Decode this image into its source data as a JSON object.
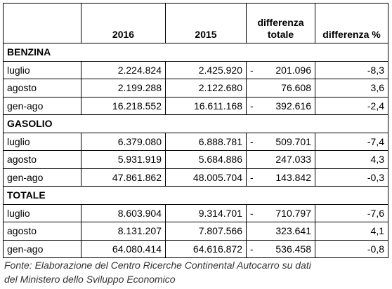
{
  "table": {
    "header": [
      "2016",
      "2015",
      "differenza totale",
      "differenza %"
    ],
    "sections": [
      {
        "name": "BENZINA",
        "rows": [
          {
            "label": "luglio",
            "values": [
              "2.224.824",
              "2.425.920"
            ],
            "sign": "-",
            "diff": "201.096",
            "pct": "-8,3"
          },
          {
            "label": "agosto",
            "values": [
              "2.199.288",
              "2.122.680"
            ],
            "diff": "76.608",
            "pct": "3,6"
          },
          {
            "label": "gen-ago",
            "values": [
              "16.218.552",
              "16.611.168"
            ],
            "sign": "-",
            "diff": "392.616",
            "pct": "-2,4"
          }
        ]
      },
      {
        "name": "GASOLIO",
        "rows": [
          {
            "label": "luglio",
            "values": [
              "6.379.080",
              "6.888.781"
            ],
            "sign": "-",
            "diff": "509.701",
            "pct": "-7,4"
          },
          {
            "label": "agosto",
            "values": [
              "5.931.919",
              "5.684.886"
            ],
            "diff": "247.033",
            "pct": "4,3"
          },
          {
            "label": "gen-ago",
            "values": [
              "47.861.862",
              "48.005.704"
            ],
            "sign": "-",
            "diff": "143.842",
            "pct": "-0,3"
          }
        ]
      },
      {
        "name": "TOTALE",
        "rows": [
          {
            "label": "luglio",
            "values": [
              "8.603.904",
              "9.314.701"
            ],
            "sign": "-",
            "diff": "710.797",
            "pct": "-7,6"
          },
          {
            "label": "agosto",
            "values": [
              "8.131.207",
              "7.807.566"
            ],
            "diff": "323.641",
            "pct": "4,1"
          },
          {
            "label": "gen-ago",
            "values": [
              "64.080.414",
              "64.616.872"
            ],
            "sign": "-",
            "diff": "536.458",
            "pct": "-0,8"
          }
        ]
      }
    ]
  },
  "footnote": [
    "Fonte: Elaborazione del Centro Ricerche Continental Autocarro su dati",
    "del Ministero dello Sviluppo Economico"
  ]
}
